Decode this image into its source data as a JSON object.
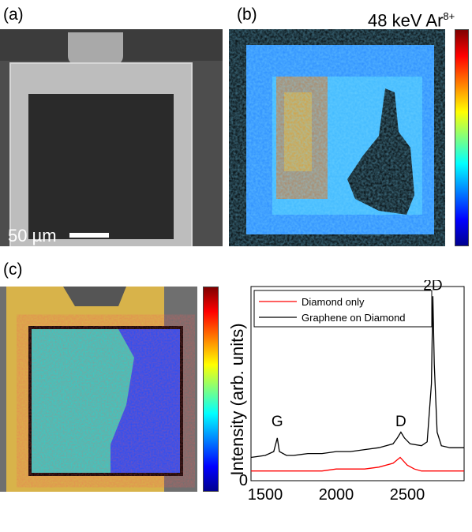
{
  "panels": {
    "a": {
      "label": "(a)",
      "scale_bar": "50 µm"
    },
    "b": {
      "label": "(b)",
      "title_text": "48 keV Ar",
      "title_sup": "8+"
    },
    "c": {
      "label": "(c)"
    }
  },
  "colors": {
    "diamond_only": "#ff0000",
    "graphene_on_diamond": "#000000",
    "gold_frame": "#d8b34a"
  },
  "chart_data": {
    "type": "line",
    "ylabel": "Intensity (arb. units)",
    "x_ticks": [
      "1500",
      "2000",
      "2500"
    ],
    "y_ticks": [
      "0"
    ],
    "xlim": [
      1400,
      2900
    ],
    "ylim": [
      0,
      1
    ],
    "legend_position": "top-left",
    "annotations": [
      {
        "text": "G",
        "x": 1585,
        "y": 0.2
      },
      {
        "text": "D",
        "x": 2455,
        "y": 0.2
      },
      {
        "text": "2D",
        "x": 2680,
        "y": 0.9
      }
    ],
    "series": [
      {
        "name": "Diamond only",
        "color": "#ff0000",
        "x": [
          1400,
          1500,
          1580,
          1700,
          1800,
          1900,
          2000,
          2100,
          2200,
          2300,
          2400,
          2450,
          2500,
          2550,
          2600,
          2700,
          2800,
          2900
        ],
        "y": [
          0.05,
          0.05,
          0.05,
          0.05,
          0.05,
          0.05,
          0.06,
          0.06,
          0.06,
          0.07,
          0.09,
          0.12,
          0.08,
          0.06,
          0.05,
          0.05,
          0.05,
          0.05
        ]
      },
      {
        "name": "Graphene on Diamond",
        "color": "#000000",
        "x": [
          1400,
          1500,
          1560,
          1585,
          1600,
          1650,
          1700,
          1800,
          1900,
          2000,
          2100,
          2200,
          2300,
          2400,
          2430,
          2455,
          2480,
          2520,
          2600,
          2640,
          2670,
          2680,
          2690,
          2710,
          2740,
          2800,
          2900
        ],
        "y": [
          0.12,
          0.13,
          0.15,
          0.22,
          0.15,
          0.13,
          0.13,
          0.14,
          0.14,
          0.15,
          0.15,
          0.16,
          0.17,
          0.19,
          0.22,
          0.25,
          0.22,
          0.19,
          0.18,
          0.2,
          0.5,
          0.95,
          0.6,
          0.25,
          0.18,
          0.17,
          0.17
        ]
      }
    ]
  }
}
